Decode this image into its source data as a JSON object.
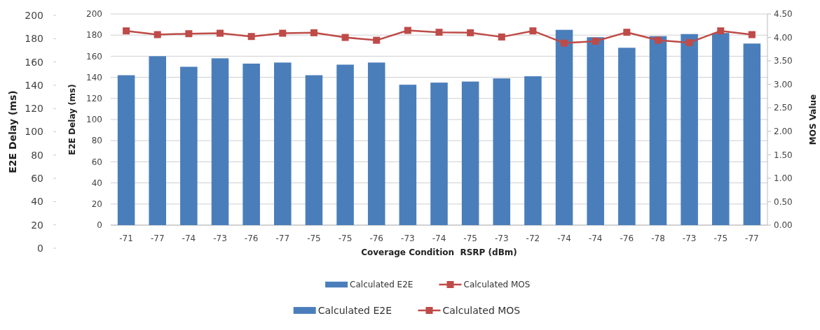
{
  "chart_data": {
    "type": "bar",
    "xlabel": "Coverage Condition  RSRP (dBm)",
    "ylabel": "E2E Delay (ms)",
    "y2label": "MOS Value",
    "y3label": "E2E Delay (ms)",
    "categories": [
      "-71",
      "-77",
      "-74",
      "-73",
      "-76",
      "-77",
      "-75",
      "-75",
      "-76",
      "-73",
      "-74",
      "-75",
      "-73",
      "-72",
      "-74",
      "-74",
      "-76",
      "-78",
      "-73",
      "-75",
      "-77"
    ],
    "series": [
      {
        "name": "Calculated E2E",
        "color": "#4a7ebb",
        "values": [
          142,
          160,
          150,
          158,
          153,
          154,
          142,
          152,
          154,
          133,
          135,
          136,
          139,
          141,
          185,
          178,
          168,
          179,
          181,
          182,
          172
        ]
      },
      {
        "name": "Calculated MOS",
        "type": "line",
        "axis": "y2",
        "color": "#be4b48",
        "values": [
          4.14,
          4.06,
          4.08,
          4.09,
          4.02,
          4.09,
          4.1,
          4.0,
          3.94,
          4.15,
          4.11,
          4.1,
          4.01,
          4.14,
          3.88,
          3.92,
          4.11,
          3.94,
          3.89,
          4.14,
          4.06
        ]
      }
    ],
    "ylim": [
      0,
      200
    ],
    "yticks": [
      0,
      20,
      40,
      60,
      80,
      100,
      120,
      140,
      160,
      180,
      200
    ],
    "y2lim": [
      0,
      4.5
    ],
    "y2ticks": [
      {
        "value": 0,
        "label": "0.00"
      },
      {
        "value": 0.5,
        "label": "0.50"
      },
      {
        "value": 1,
        "label": "1.00"
      },
      {
        "value": 1.5,
        "label": "1.50"
      },
      {
        "value": 2,
        "label": "2.00"
      },
      {
        "value": 2.5,
        "label": "2.50"
      },
      {
        "value": 3,
        "label": "3.00"
      },
      {
        "value": 3.5,
        "label": "3.50"
      },
      {
        "value": 4,
        "label": "4.00"
      },
      {
        "value": 4.5,
        "label": "4.50"
      }
    ],
    "y3lim": [
      0,
      200
    ],
    "y3ticks": [
      0,
      20,
      40,
      60,
      80,
      100,
      120,
      140,
      160,
      180,
      200
    ],
    "grid": "y",
    "legend": "bottom",
    "marker": "square",
    "line_style": "solid"
  }
}
